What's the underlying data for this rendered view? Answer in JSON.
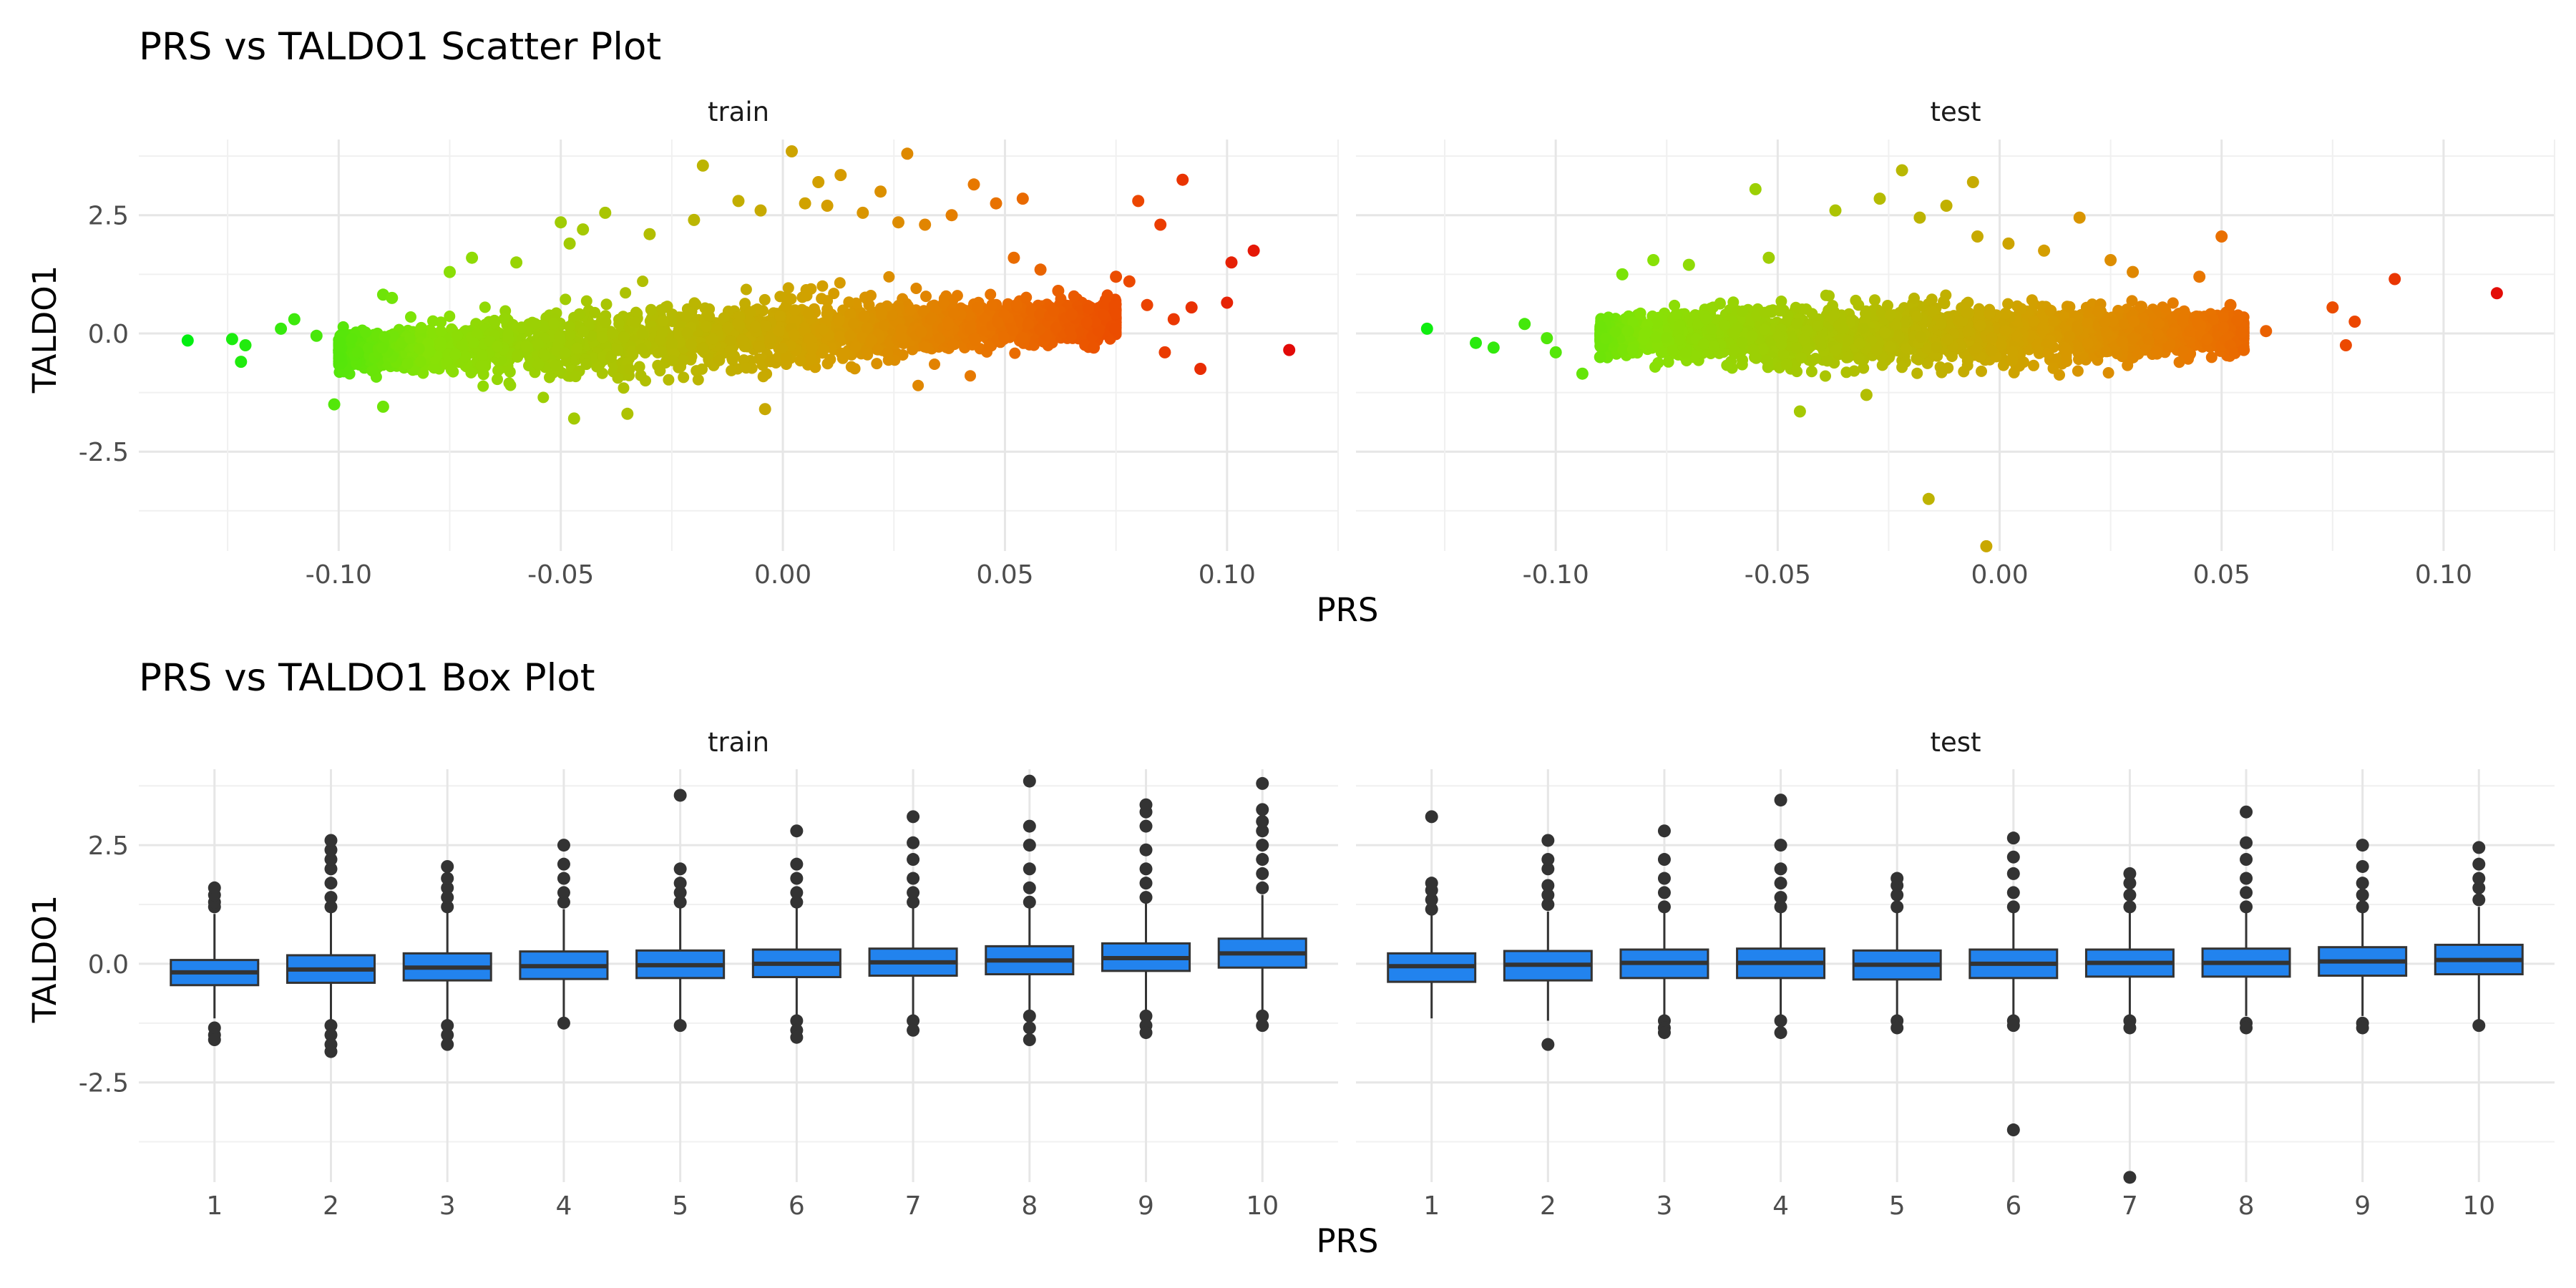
{
  "chart_data": [
    {
      "type": "scatter",
      "title": "PRS vs TALDO1 Scatter Plot",
      "xlabel": "PRS",
      "ylabel": "TALDO1",
      "facets": [
        "train",
        "test"
      ],
      "xlim": [
        -0.145,
        0.125
      ],
      "ylim": [
        -4.6,
        4.1
      ],
      "x_ticks": [
        "-0.10",
        "-0.05",
        "0.00",
        "0.05",
        "0.10"
      ],
      "y_ticks": [
        "-2.5",
        "0.0",
        "2.5"
      ],
      "grid": true,
      "color_scale": {
        "low": "#00ee11",
        "mid": "#cccc00",
        "high": "#ee0000",
        "mapped_to": "PRS"
      },
      "series": [
        {
          "name": "train",
          "points": [
            [
              -0.134,
              -0.15
            ],
            [
              -0.124,
              -0.12
            ],
            [
              -0.121,
              -0.25
            ],
            [
              -0.122,
              -0.6
            ],
            [
              -0.11,
              0.3
            ],
            [
              -0.113,
              0.1
            ],
            [
              -0.105,
              -0.05
            ],
            [
              -0.101,
              -1.5
            ],
            [
              -0.09,
              -1.55
            ],
            [
              -0.09,
              0.82
            ],
            [
              -0.088,
              0.75
            ],
            [
              -0.075,
              1.3
            ],
            [
              -0.07,
              1.6
            ],
            [
              -0.06,
              1.5
            ],
            [
              -0.05,
              2.35
            ],
            [
              -0.048,
              1.9
            ],
            [
              -0.047,
              -1.8
            ],
            [
              -0.045,
              2.2
            ],
            [
              -0.04,
              2.55
            ],
            [
              -0.035,
              -1.7
            ],
            [
              -0.03,
              2.1
            ],
            [
              -0.02,
              2.4
            ],
            [
              -0.018,
              3.55
            ],
            [
              -0.01,
              2.8
            ],
            [
              -0.005,
              2.6
            ],
            [
              -0.004,
              -1.6
            ],
            [
              0.002,
              3.85
            ],
            [
              0.005,
              2.75
            ],
            [
              0.008,
              3.2
            ],
            [
              0.01,
              2.7
            ],
            [
              0.013,
              3.35
            ],
            [
              0.018,
              2.55
            ],
            [
              0.022,
              3.0
            ],
            [
              0.026,
              2.35
            ],
            [
              0.028,
              3.8
            ],
            [
              0.032,
              2.3
            ],
            [
              0.038,
              2.5
            ],
            [
              0.043,
              3.15
            ],
            [
              0.048,
              2.75
            ],
            [
              0.054,
              2.85
            ],
            [
              0.052,
              1.6
            ],
            [
              0.058,
              1.35
            ],
            [
              0.062,
              0.9
            ],
            [
              0.065,
              0.4
            ],
            [
              0.07,
              -0.3
            ],
            [
              0.075,
              1.2
            ],
            [
              0.078,
              1.1
            ],
            [
              0.08,
              2.8
            ],
            [
              0.082,
              0.6
            ],
            [
              0.085,
              2.3
            ],
            [
              0.086,
              -0.4
            ],
            [
              0.088,
              0.3
            ],
            [
              0.09,
              3.25
            ],
            [
              0.092,
              0.55
            ],
            [
              0.094,
              -0.75
            ],
            [
              0.1,
              0.65
            ],
            [
              0.101,
              1.5
            ],
            [
              0.106,
              1.75
            ],
            [
              0.114,
              -0.35
            ]
          ],
          "dense_cloud": {
            "x_range": [
              -0.1,
              0.075
            ],
            "y_center": 0.0,
            "y_spread": 0.8,
            "trend": "slight positive slope"
          }
        },
        {
          "name": "test",
          "points": [
            [
              -0.129,
              0.1
            ],
            [
              -0.118,
              -0.2
            ],
            [
              -0.114,
              -0.3
            ],
            [
              -0.107,
              0.2
            ],
            [
              -0.102,
              -0.1
            ],
            [
              -0.1,
              -0.4
            ],
            [
              -0.094,
              -0.85
            ],
            [
              -0.09,
              -0.5
            ],
            [
              -0.085,
              1.25
            ],
            [
              -0.078,
              1.55
            ],
            [
              -0.07,
              1.45
            ],
            [
              -0.055,
              3.05
            ],
            [
              -0.052,
              1.6
            ],
            [
              -0.045,
              -1.65
            ],
            [
              -0.037,
              2.6
            ],
            [
              -0.03,
              -1.3
            ],
            [
              -0.027,
              2.85
            ],
            [
              -0.022,
              3.45
            ],
            [
              -0.018,
              2.45
            ],
            [
              -0.016,
              -3.5
            ],
            [
              -0.012,
              2.7
            ],
            [
              -0.006,
              3.2
            ],
            [
              -0.005,
              2.05
            ],
            [
              -0.003,
              -4.5
            ],
            [
              0.002,
              1.9
            ],
            [
              0.01,
              1.75
            ],
            [
              0.018,
              2.45
            ],
            [
              0.025,
              1.55
            ],
            [
              0.03,
              1.3
            ],
            [
              0.045,
              1.2
            ],
            [
              0.05,
              2.05
            ],
            [
              0.052,
              0.6
            ],
            [
              0.055,
              -0.35
            ],
            [
              0.06,
              0.05
            ],
            [
              0.075,
              0.55
            ],
            [
              0.08,
              0.25
            ],
            [
              0.078,
              -0.25
            ],
            [
              0.089,
              1.15
            ],
            [
              0.112,
              0.85
            ]
          ],
          "dense_cloud": {
            "x_range": [
              -0.09,
              0.055
            ],
            "y_center": 0.0,
            "y_spread": 0.75,
            "trend": "flat"
          }
        }
      ]
    },
    {
      "type": "box",
      "title": "PRS vs TALDO1 Box Plot",
      "xlabel": "PRS",
      "ylabel": "TALDO1",
      "facets": [
        "train",
        "test"
      ],
      "categories": [
        "1",
        "2",
        "3",
        "4",
        "5",
        "6",
        "7",
        "8",
        "9",
        "10"
      ],
      "ylim": [
        -4.6,
        4.1
      ],
      "y_ticks": [
        "-2.5",
        "0.0",
        "2.5"
      ],
      "box_fill": "#2283ee",
      "grid": true,
      "series": [
        {
          "name": "train",
          "boxes": [
            {
              "q1": -0.45,
              "median": -0.18,
              "q3": 0.08,
              "lower": -1.15,
              "upper": 1.05,
              "outliers": [
                1.2,
                1.3,
                1.45,
                1.6,
                -1.35,
                -1.5,
                -1.6
              ]
            },
            {
              "q1": -0.4,
              "median": -0.12,
              "q3": 0.18,
              "lower": -1.25,
              "upper": 1.1,
              "outliers": [
                1.2,
                1.4,
                1.7,
                2.0,
                2.2,
                2.4,
                2.6,
                -1.3,
                -1.5,
                -1.7,
                -1.85
              ]
            },
            {
              "q1": -0.35,
              "median": -0.08,
              "q3": 0.22,
              "lower": -1.2,
              "upper": 1.1,
              "outliers": [
                1.2,
                1.4,
                1.6,
                1.8,
                2.05,
                -1.3,
                -1.5,
                -1.7
              ]
            },
            {
              "q1": -0.32,
              "median": -0.05,
              "q3": 0.26,
              "lower": -1.15,
              "upper": 1.15,
              "outliers": [
                1.3,
                1.5,
                1.8,
                2.1,
                2.5,
                -1.25
              ]
            },
            {
              "q1": -0.3,
              "median": -0.03,
              "q3": 0.28,
              "lower": -1.2,
              "upper": 1.2,
              "outliers": [
                1.3,
                1.5,
                1.7,
                2.0,
                3.55,
                -1.3
              ]
            },
            {
              "q1": -0.28,
              "median": 0.0,
              "q3": 0.3,
              "lower": -1.1,
              "upper": 1.2,
              "outliers": [
                1.3,
                1.5,
                1.8,
                2.1,
                2.8,
                -1.2,
                -1.4,
                -1.55
              ]
            },
            {
              "q1": -0.25,
              "median": 0.03,
              "q3": 0.32,
              "lower": -1.1,
              "upper": 1.2,
              "outliers": [
                1.3,
                1.5,
                1.8,
                2.2,
                2.55,
                3.1,
                -1.2,
                -1.4
              ]
            },
            {
              "q1": -0.22,
              "median": 0.07,
              "q3": 0.37,
              "lower": -1.05,
              "upper": 1.25,
              "outliers": [
                1.3,
                1.6,
                2.0,
                2.5,
                2.9,
                3.85,
                -1.1,
                -1.35,
                -1.6
              ]
            },
            {
              "q1": -0.15,
              "median": 0.12,
              "q3": 0.43,
              "lower": -1.0,
              "upper": 1.3,
              "outliers": [
                1.4,
                1.7,
                2.0,
                2.4,
                2.9,
                3.2,
                3.35,
                -1.1,
                -1.3,
                -1.45
              ]
            },
            {
              "q1": -0.08,
              "median": 0.22,
              "q3": 0.53,
              "lower": -1.0,
              "upper": 1.45,
              "outliers": [
                1.6,
                1.9,
                2.2,
                2.5,
                2.8,
                3.0,
                3.25,
                3.8,
                -1.1,
                -1.3
              ]
            }
          ]
        },
        {
          "name": "test",
          "boxes": [
            {
              "q1": -0.38,
              "median": -0.05,
              "q3": 0.22,
              "lower": -1.15,
              "upper": 1.05,
              "outliers": [
                1.15,
                1.35,
                1.55,
                1.7,
                3.1
              ]
            },
            {
              "q1": -0.35,
              "median": -0.02,
              "q3": 0.27,
              "lower": -1.2,
              "upper": 1.1,
              "outliers": [
                1.25,
                1.45,
                1.65,
                2.0,
                2.2,
                2.6,
                -1.7
              ]
            },
            {
              "q1": -0.3,
              "median": 0.02,
              "q3": 0.3,
              "lower": -1.1,
              "upper": 1.1,
              "outliers": [
                1.2,
                1.5,
                1.8,
                2.2,
                2.8,
                -1.2,
                -1.35,
                -1.45
              ]
            },
            {
              "q1": -0.3,
              "median": 0.02,
              "q3": 0.32,
              "lower": -1.1,
              "upper": 1.15,
              "outliers": [
                1.2,
                1.4,
                1.7,
                2.0,
                2.5,
                3.45,
                -1.2,
                -1.45
              ]
            },
            {
              "q1": -0.33,
              "median": -0.02,
              "q3": 0.28,
              "lower": -1.15,
              "upper": 1.1,
              "outliers": [
                1.2,
                1.45,
                1.65,
                1.8,
                -1.2,
                -1.35
              ]
            },
            {
              "q1": -0.3,
              "median": 0.0,
              "q3": 0.3,
              "lower": -1.1,
              "upper": 1.1,
              "outliers": [
                1.2,
                1.5,
                1.9,
                2.25,
                2.65,
                -1.2,
                -1.3,
                -3.5
              ]
            },
            {
              "q1": -0.27,
              "median": 0.02,
              "q3": 0.3,
              "lower": -1.1,
              "upper": 1.1,
              "outliers": [
                1.2,
                1.45,
                1.7,
                1.9,
                -1.2,
                -1.35,
                -4.5
              ]
            },
            {
              "q1": -0.27,
              "median": 0.02,
              "q3": 0.32,
              "lower": -1.1,
              "upper": 1.15,
              "outliers": [
                1.2,
                1.5,
                1.8,
                2.2,
                2.55,
                3.2,
                -1.25,
                -1.35
              ]
            },
            {
              "q1": -0.25,
              "median": 0.05,
              "q3": 0.35,
              "lower": -1.1,
              "upper": 1.15,
              "outliers": [
                1.2,
                1.45,
                1.7,
                2.05,
                2.5,
                -1.25,
                -1.35
              ]
            },
            {
              "q1": -0.22,
              "median": 0.08,
              "q3": 0.4,
              "lower": -1.3,
              "upper": 1.2,
              "outliers": [
                1.35,
                1.6,
                1.8,
                2.1,
                2.45,
                -1.3
              ]
            }
          ]
        }
      ]
    }
  ]
}
